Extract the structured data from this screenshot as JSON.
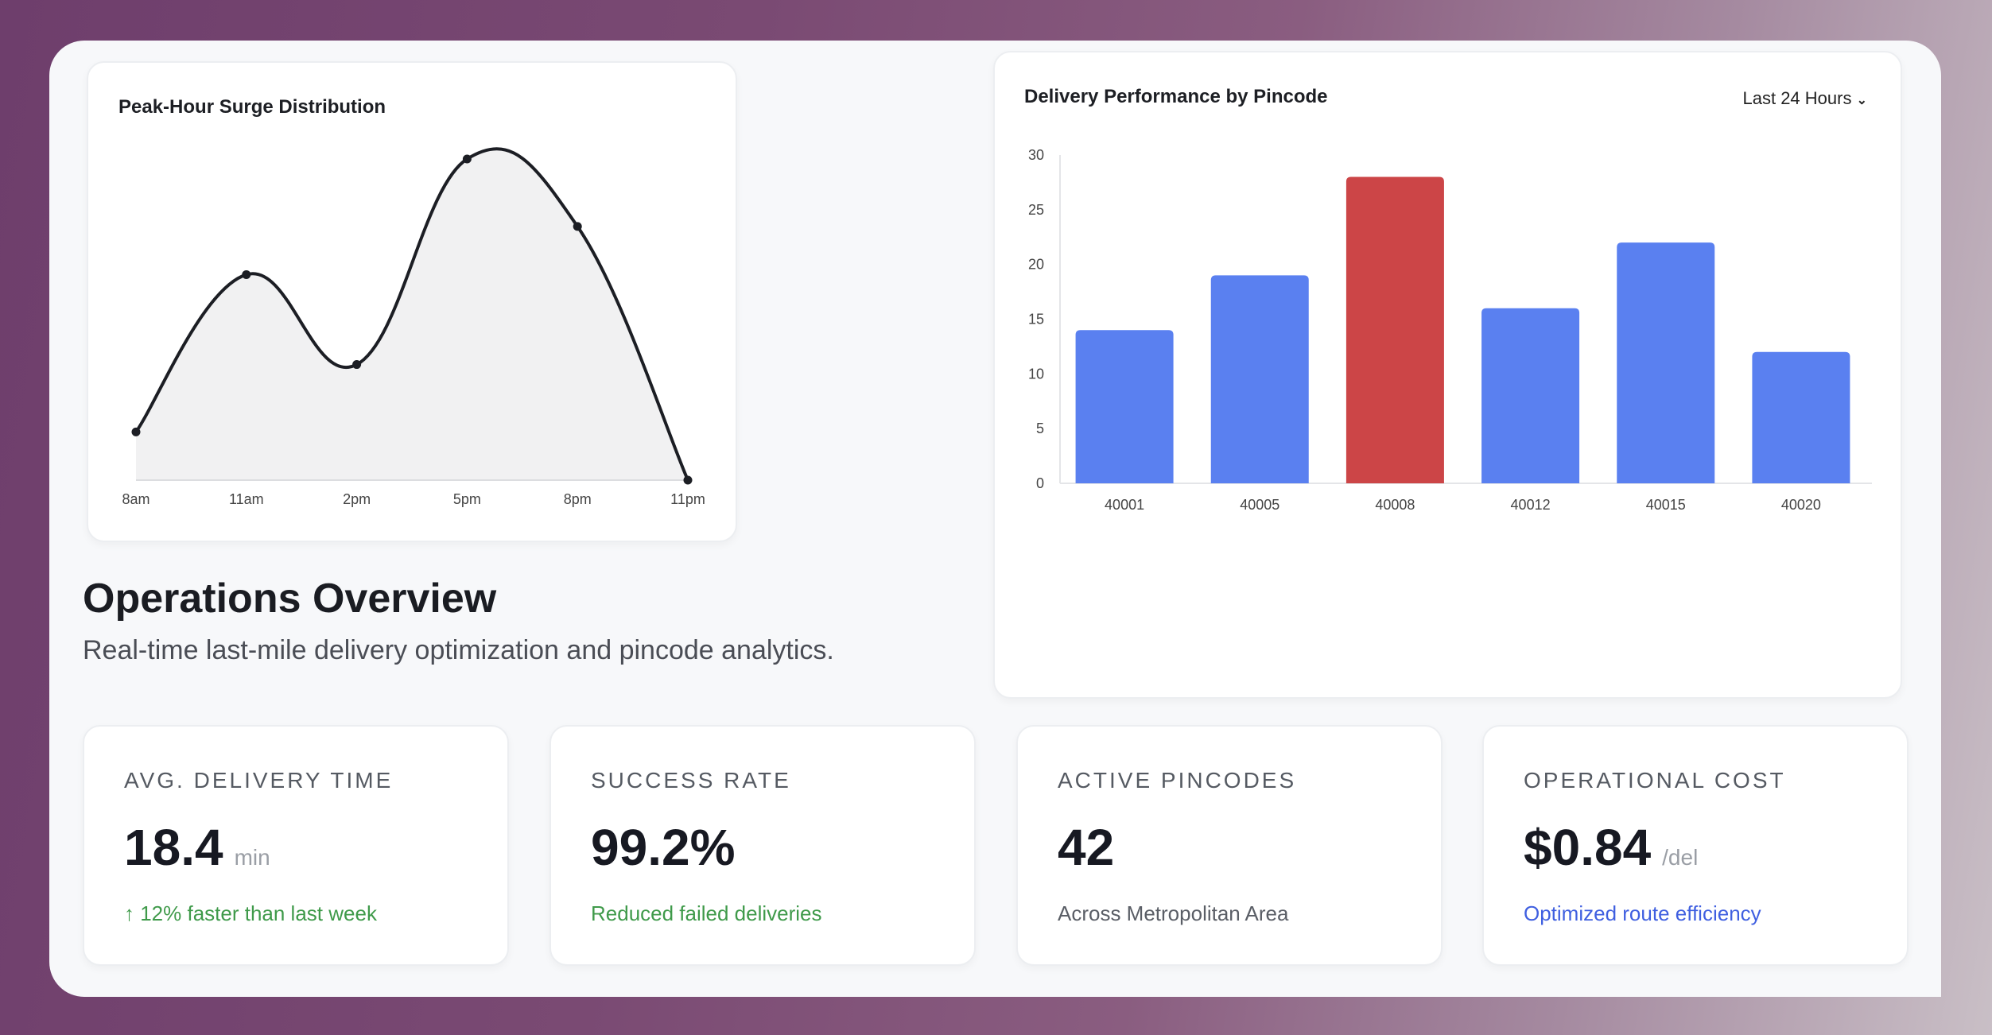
{
  "colors": {
    "bar": "#5a80f0",
    "highlight": "#cc4547",
    "line": "#1c1e24",
    "area": "#f1f1f2",
    "positive": "#3f9a4a",
    "accent": "#3f5fe0",
    "neutral": "#5a5e66"
  },
  "line_card": {
    "title": "Peak-Hour Surge Distribution"
  },
  "bar_card": {
    "title": "Delivery Performance by Pincode",
    "range_select": "Last 24 Hours",
    "range_icon": "chevron-down-icon"
  },
  "header": {
    "title": "Operations Overview",
    "subtitle": "Real-time last-mile delivery optimization and pincode analytics."
  },
  "stats": [
    {
      "label": "AVG. DELIVERY TIME",
      "value": "18.4",
      "unit": "min",
      "note": "↑ 12% faster than last week",
      "note_color": "#3f9a4a"
    },
    {
      "label": "SUCCESS RATE",
      "value": "99.2%",
      "unit": "",
      "note": "Reduced failed deliveries",
      "note_color": "#3f9a4a"
    },
    {
      "label": "ACTIVE PINCODES",
      "value": "42",
      "unit": "",
      "note": "Across Metropolitan Area",
      "note_color": "#5a5e66"
    },
    {
      "label": "OPERATIONAL COST",
      "value": "$0.84",
      "unit": "/del",
      "note": "Optimized route efficiency",
      "note_color": "#3f5fe0"
    }
  ],
  "chart_data": [
    {
      "type": "area",
      "title": "Peak-Hour Surge Distribution",
      "categories": [
        "8am",
        "11am",
        "2pm",
        "5pm",
        "8pm",
        "11pm"
      ],
      "values": [
        15,
        64,
        36,
        100,
        79,
        0
      ],
      "ylim": [
        0,
        100
      ],
      "grid": false,
      "smooth": true
    },
    {
      "type": "bar",
      "title": "Delivery Performance by Pincode",
      "categories": [
        "40001",
        "40005",
        "40008",
        "40012",
        "40015",
        "40020"
      ],
      "values": [
        14,
        19,
        28,
        16,
        22,
        12
      ],
      "highlight_index": 2,
      "ylim": [
        0,
        30
      ],
      "yticks": [
        0,
        5,
        10,
        15,
        20,
        25,
        30
      ],
      "grid": false
    }
  ]
}
